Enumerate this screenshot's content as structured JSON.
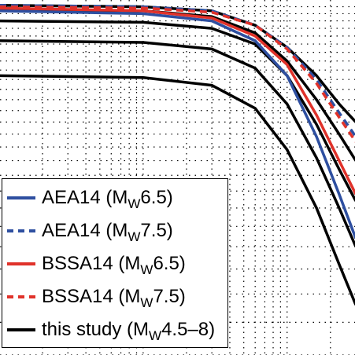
{
  "chart_data": {
    "type": "line",
    "title": "",
    "xlabel": "",
    "ylabel": "",
    "xscale": "log",
    "yscale": "log",
    "grid": true,
    "legend_placement": "bottom-left",
    "xlim": [
      1,
      300
    ],
    "ylim": [
      0.3,
      1.6
    ],
    "series": [
      {
        "name": "AEA14 (M_W6.5)",
        "color": "#2e4fa0",
        "dash": "solid",
        "x": [
          1,
          10,
          30,
          60,
          100,
          160,
          230,
          300
        ],
        "y": [
          1.52,
          1.5,
          1.45,
          1.32,
          1.12,
          0.84,
          0.64,
          0.52
        ]
      },
      {
        "name": "AEA14 (M_W7.5)",
        "color": "#2e4fa0",
        "dash": "dashed",
        "x": [
          1,
          10,
          30,
          60,
          100,
          160,
          230,
          300
        ],
        "y": [
          1.56,
          1.55,
          1.52,
          1.42,
          1.28,
          1.1,
          0.94,
          0.84
        ]
      },
      {
        "name": "BSSA14 (M_W6.5)",
        "color": "#e0322a",
        "dash": "solid",
        "x": [
          1,
          10,
          30,
          60,
          100,
          160,
          230,
          300
        ],
        "y": [
          1.54,
          1.52,
          1.47,
          1.35,
          1.18,
          0.93,
          0.75,
          0.64
        ]
      },
      {
        "name": "BSSA14 (M_W7.5)",
        "color": "#e0322a",
        "dash": "dashed",
        "x": [
          1,
          10,
          30,
          60,
          100,
          160,
          230,
          300
        ],
        "y": [
          1.55,
          1.54,
          1.51,
          1.42,
          1.27,
          1.08,
          0.92,
          0.82
        ]
      },
      {
        "name": "this study (M_W4.5–8)",
        "color": "#000000",
        "dash": "solid",
        "curves": [
          {
            "x": [
              1,
              10,
              30,
              60,
              100,
              160,
              230,
              300
            ],
            "y": [
              1.56,
              1.55,
              1.52,
              1.42,
              1.28,
              1.12,
              0.98,
              0.9
            ]
          },
          {
            "x": [
              1,
              10,
              30,
              60,
              100,
              160,
              230,
              300
            ],
            "y": [
              1.53,
              1.52,
              1.48,
              1.37,
              1.2,
              1.0,
              0.85,
              0.75
            ]
          },
          {
            "x": [
              1,
              10,
              30,
              60,
              100,
              160,
              230,
              300
            ],
            "y": [
              1.45,
              1.44,
              1.4,
              1.3,
              1.12,
              0.89,
              0.72,
              0.62
            ]
          },
          {
            "x": [
              1,
              10,
              30,
              60,
              100,
              160,
              230,
              300
            ],
            "y": [
              1.32,
              1.31,
              1.27,
              1.16,
              0.98,
              0.76,
              0.6,
              0.5
            ]
          },
          {
            "x": [
              1,
              10,
              30,
              60,
              100,
              160,
              230,
              300
            ],
            "y": [
              1.12,
              1.11,
              1.07,
              0.96,
              0.79,
              0.6,
              0.46,
              0.38
            ]
          }
        ]
      }
    ]
  },
  "legend": {
    "items": [
      {
        "label_main": "AEA14 (M",
        "label_sub": "W",
        "label_end": "6.5)",
        "color": "#2e4fa0",
        "dash": "solid"
      },
      {
        "label_main": "AEA14 (M",
        "label_sub": "W",
        "label_end": "7.5)",
        "color": "#2e4fa0",
        "dash": "dashed"
      },
      {
        "label_main": "BSSA14 (M",
        "label_sub": "W",
        "label_end": "6.5)",
        "color": "#e0322a",
        "dash": "solid"
      },
      {
        "label_main": "BSSA14 (M",
        "label_sub": "W",
        "label_end": "7.5)",
        "color": "#e0322a",
        "dash": "dashed"
      },
      {
        "label_main": "this study (M",
        "label_sub": "W",
        "label_end": "4.5–8)",
        "color": "#000000",
        "dash": "solid"
      }
    ]
  }
}
